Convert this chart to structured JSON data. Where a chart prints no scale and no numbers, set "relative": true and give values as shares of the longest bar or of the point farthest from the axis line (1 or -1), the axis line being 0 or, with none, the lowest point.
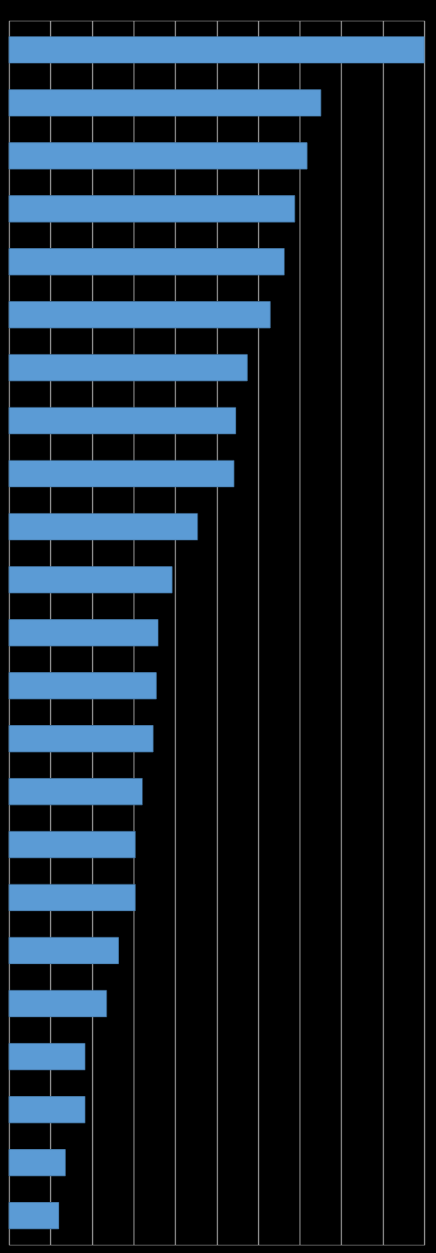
{
  "chart_data": {
    "type": "bar",
    "orientation": "horizontal",
    "relative": true,
    "grid": "x",
    "tick_labels": false,
    "categories": [
      null,
      null,
      null,
      null,
      null,
      null,
      null,
      null,
      null,
      null,
      null,
      null,
      null,
      null,
      null,
      null,
      null,
      null,
      null,
      null,
      null,
      null,
      null
    ],
    "values": [
      1.0,
      0.751,
      0.718,
      0.688,
      0.663,
      0.629,
      0.574,
      0.546,
      0.542,
      0.454,
      0.393,
      0.359,
      0.355,
      0.347,
      0.321,
      0.304,
      0.304,
      0.264,
      0.235,
      0.183,
      0.183,
      0.136,
      0.12
    ],
    "color": "#5b9bd5"
  }
}
